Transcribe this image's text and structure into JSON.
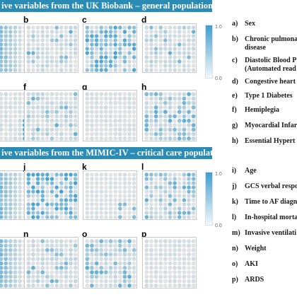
{
  "sections": [
    {
      "id": "uk",
      "header": "ive variables from the UK Biobank – general population:",
      "legend": [
        {
          "letter": "a)",
          "text": "Sex"
        },
        {
          "letter": "b)",
          "text": "Chronic pulmonary",
          "text2": "disease"
        },
        {
          "letter": "c)",
          "text": "Diastolic Blood P",
          "text2": "(Automated read"
        },
        {
          "letter": "d)",
          "text": "Congestive heart"
        },
        {
          "letter": "e)",
          "text": "Type 1 Diabetes"
        },
        {
          "letter": "f)",
          "text": "Hemiplegia"
        },
        {
          "letter": "g)",
          "text": "Myocardial Infar"
        },
        {
          "letter": "h)",
          "text": "Essential Hypert"
        }
      ],
      "panels": [
        {
          "label": "",
          "pattern": "left-strong",
          "seed": 3
        },
        {
          "label": "b",
          "pattern": "light-scatter",
          "seed": 7
        },
        {
          "label": "c",
          "pattern": "strong-scatter",
          "seed": 11
        },
        {
          "label": "d",
          "pattern": "light-scatter",
          "seed": 13
        },
        {
          "label": "",
          "pattern": "corner",
          "seed": 17
        },
        {
          "label": "f",
          "pattern": "light-scatter",
          "seed": 19
        },
        {
          "label": "g",
          "pattern": "very-light",
          "seed": 23
        },
        {
          "label": "h",
          "pattern": "medium-scatter",
          "seed": 29
        }
      ],
      "colorbar": {
        "max": "1.0",
        "min": "0.0"
      }
    },
    {
      "id": "mimic",
      "header": "ive variables from the MIMIC-IV – critical care population:",
      "legend": [
        {
          "letter": "i)",
          "text": "Age"
        },
        {
          "letter": "j)",
          "text": "GCS verbal respo"
        },
        {
          "letter": "k)",
          "text": "Time to AF diagn"
        },
        {
          "letter": "l)",
          "text": "In-hospital morta"
        },
        {
          "letter": "m)",
          "text": "Invasive ventilati"
        },
        {
          "letter": "n)",
          "text": "Weight"
        },
        {
          "letter": "o)",
          "text": "AKI"
        },
        {
          "letter": "p)",
          "text": "ARDS"
        }
      ],
      "panels": [
        {
          "label": "",
          "pattern": "left-strong",
          "seed": 31
        },
        {
          "label": "j",
          "pattern": "strong-scatter",
          "seed": 37
        },
        {
          "label": "k",
          "pattern": "very-light-br",
          "seed": 41
        },
        {
          "label": "l",
          "pattern": "medium-scatter",
          "seed": 43
        },
        {
          "label": "",
          "pattern": "left-strong",
          "seed": 47
        },
        {
          "label": "n",
          "pattern": "light-scatter",
          "seed": 53
        },
        {
          "label": "o",
          "pattern": "medium-scatter",
          "seed": 59
        },
        {
          "label": "p",
          "pattern": "very-light",
          "seed": 61
        }
      ],
      "colorbar": {
        "max": "1.0",
        "min": "0.0"
      }
    }
  ],
  "colors": {
    "band": "#2a8cb4",
    "high": "#3f9fd0",
    "low": "#e4e4e4"
  }
}
